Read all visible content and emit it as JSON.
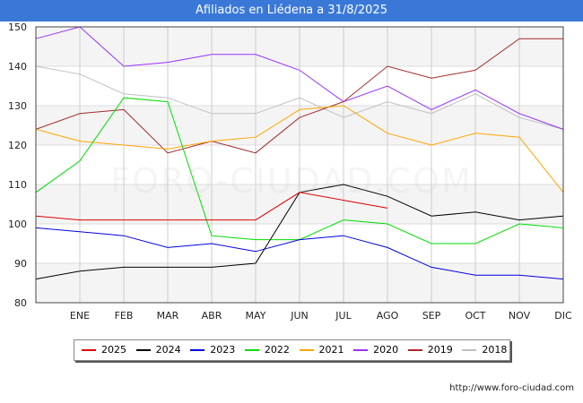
{
  "header": {
    "title": "Afiliados en Liédena a 31/8/2025"
  },
  "footer": {
    "url": "http://www.foro-ciudad.com"
  },
  "watermark": "FORO-CIUDAD.COM",
  "chart_data": {
    "type": "line",
    "title": "Afiliados en Liédena a 31/8/2025",
    "xlabel": "",
    "ylabel": "",
    "categories": [
      "",
      "ENE",
      "FEB",
      "MAR",
      "ABR",
      "MAY",
      "JUN",
      "JUL",
      "AGO",
      "SEP",
      "OCT",
      "NOV",
      "DIC"
    ],
    "ylim": [
      80,
      150
    ],
    "yticks": [
      80,
      90,
      100,
      110,
      120,
      130,
      140,
      150
    ],
    "grid": true,
    "legend_position": "bottom",
    "series": [
      {
        "name": "2025",
        "color": "#dd0000",
        "values": [
          102,
          101,
          101,
          101,
          101,
          101,
          108,
          106,
          104,
          null,
          null,
          null,
          null
        ]
      },
      {
        "name": "2024",
        "color": "#000000",
        "values": [
          86,
          88,
          89,
          89,
          89,
          90,
          108,
          110,
          107,
          102,
          103,
          101,
          102
        ]
      },
      {
        "name": "2023",
        "color": "#0000dd",
        "values": [
          99,
          98,
          97,
          94,
          95,
          93,
          96,
          97,
          94,
          89,
          87,
          87,
          86
        ]
      },
      {
        "name": "2022",
        "color": "#00dd00",
        "values": [
          108,
          116,
          132,
          131,
          97,
          96,
          96,
          101,
          100,
          95,
          95,
          100,
          99
        ]
      },
      {
        "name": "2021",
        "color": "#ffa500",
        "values": [
          124,
          121,
          120,
          119,
          121,
          122,
          129,
          130,
          123,
          120,
          123,
          122,
          108
        ]
      },
      {
        "name": "2020",
        "color": "#9b30ff",
        "values": [
          147,
          150,
          140,
          141,
          143,
          143,
          139,
          131,
          135,
          129,
          134,
          128,
          124
        ]
      },
      {
        "name": "2019",
        "color": "#a52a2a",
        "values": [
          124,
          128,
          129,
          118,
          121,
          118,
          127,
          131,
          140,
          137,
          139,
          147,
          147
        ]
      },
      {
        "name": "2018",
        "color": "#c0c0c0",
        "values": [
          140,
          138,
          133,
          132,
          128,
          128,
          132,
          127,
          131,
          128,
          133,
          127,
          124
        ]
      }
    ]
  }
}
